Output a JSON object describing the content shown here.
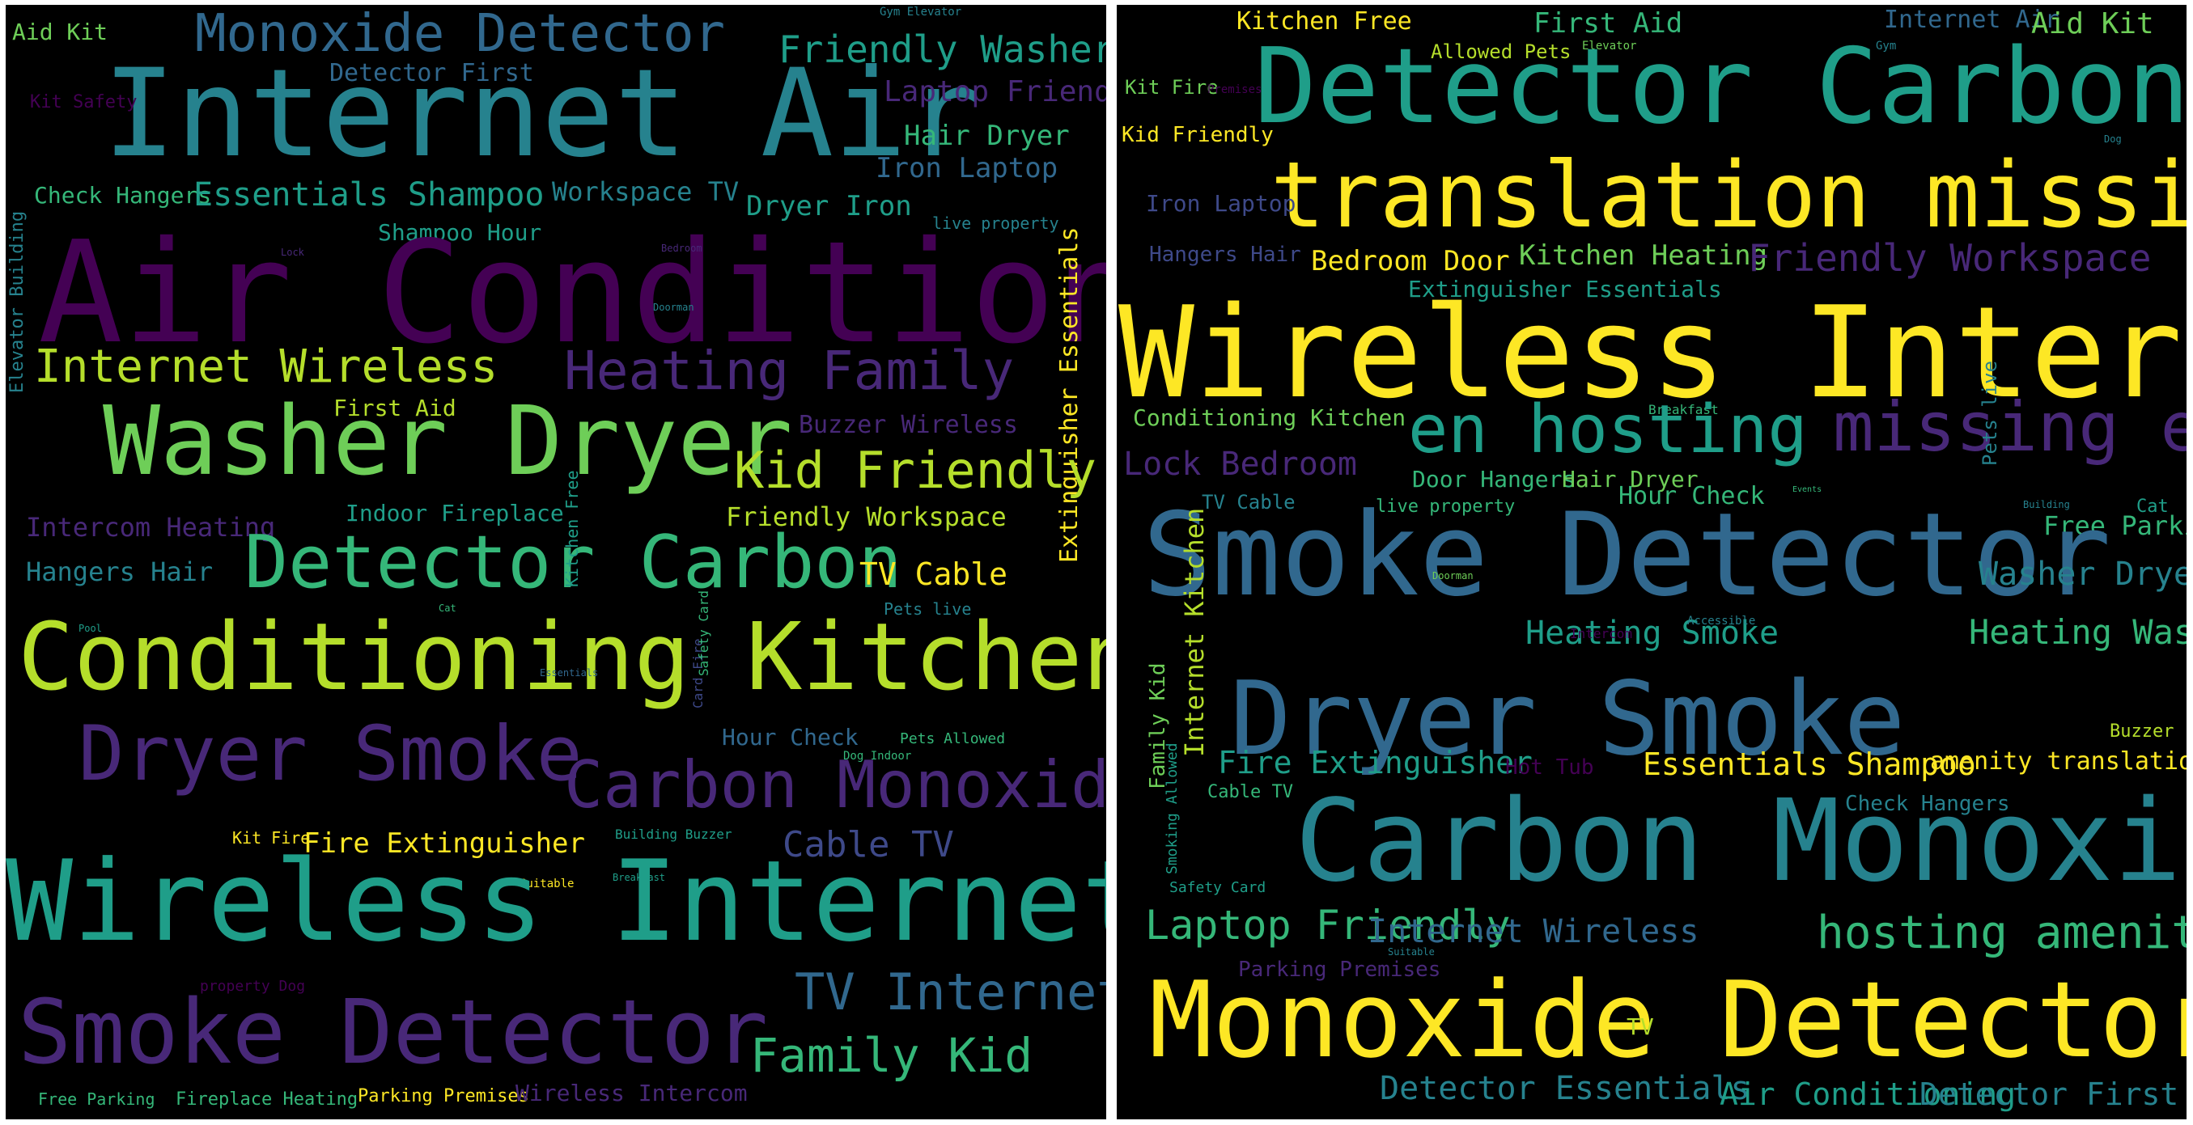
{
  "palette": {
    "background": "#000000",
    "page_background": "#ffffff",
    "viridis": [
      "#440154",
      "#482878",
      "#3e4989",
      "#31688e",
      "#26828e",
      "#1f9e89",
      "#35b779",
      "#6ece58",
      "#b5de2b",
      "#fde725"
    ]
  },
  "left_cloud": {
    "words": [
      "Aid Kit",
      "Monoxide Detector",
      "Friendly Washer",
      "Gym Elevator",
      "Internet Air",
      "Detector First",
      "Laptop Friendly",
      "Kit Safety",
      "Hair Dryer",
      "Iron Laptop",
      "Check Hangers",
      "Essentials Shampoo",
      "Workspace TV",
      "Dryer Iron",
      "Shampoo Hour",
      "live property",
      "Elevator Building",
      "Air Conditioning",
      "Extinguisher Essentials",
      "Internet Wireless",
      "Heating Family",
      "First Aid",
      "Washer Dryer",
      "Buzzer Wireless",
      "Kid Friendly",
      "Intercom Heating",
      "Indoor Fireplace",
      "Friendly Workspace",
      "Hangers Hair",
      "Detector Carbon",
      "Kitchen Free",
      "TV Cable",
      "Pets live",
      "Conditioning Kitchen",
      "Card Fire",
      "Safety Card",
      "Hour Check",
      "Pets Allowed",
      "Dog Indoor",
      "Dryer Smoke",
      "Carbon Monoxide",
      "Kit Fire",
      "Fire Extinguisher",
      "Building Buzzer",
      "Cable TV",
      "Suitable",
      "Breakfast",
      "Wireless Internet",
      "property Dog",
      "TV Internet",
      "Smoke Detector",
      "Family Kid",
      "Free Parking",
      "Fireplace Heating",
      "Parking Premises",
      "Wireless Intercom",
      "Lock",
      "Bedroom",
      "Doorman",
      "Cat",
      "Pool",
      "Essentials"
    ]
  },
  "right_cloud": {
    "words": [
      "Kitchen Free",
      "First Aid",
      "Internet Air",
      "Aid Kit",
      "Allowed Pets",
      "Elevator",
      "Gym",
      "Detector Carbon",
      "Kit Fire",
      "Premises",
      "Kid Friendly",
      "Dog",
      "translation missing",
      "Iron Laptop",
      "Hangers Hair",
      "Bedroom Door",
      "Kitchen Heating",
      "Friendly Workspace",
      "Extinguisher Essentials",
      "Wireless Internet",
      "Conditioning Kitchen",
      "Breakfast",
      "en hosting",
      "missing en",
      "Pets live",
      "Lock Bedroom",
      "Door Hangers",
      "Hair Dryer",
      "TV Cable",
      "live property",
      "Hour Check",
      "Events",
      "Building",
      "Cat",
      "Free Parking",
      "Smoke Detector",
      "Washer Dryer",
      "Doorman",
      "Heating Smoke",
      "Accessible",
      "Intercom",
      "Heating Washer",
      "Family Kid",
      "Internet Kitchen",
      "Dryer Smoke",
      "Buzzer",
      "Smoking Allowed",
      "Fire Extinguisher",
      "Hot Tub",
      "Essentials Shampoo",
      "amenity translation",
      "Cable TV",
      "Check Hangers",
      "Carbon Monoxide",
      "Safety Card",
      "Laptop Friendly",
      "Internet Wireless",
      "hosting amenity",
      "Parking Premises",
      "Suitable",
      "Monoxide Detector",
      "TV",
      "Detector Essentials",
      "Air Conditioning",
      "Detector First"
    ]
  }
}
